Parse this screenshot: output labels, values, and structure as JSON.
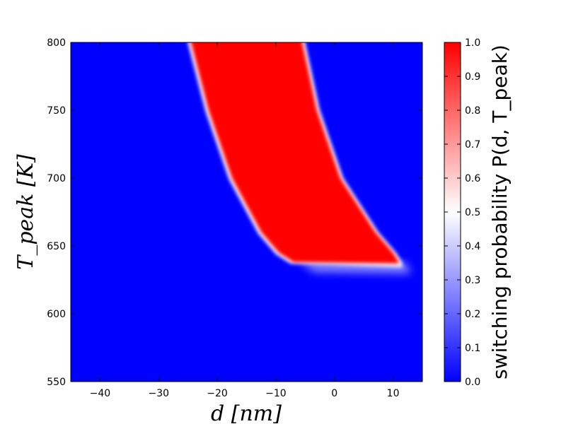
{
  "chart_data": {
    "type": "heatmap",
    "title": "",
    "xlabel": "d [nm]",
    "ylabel": "T_peak [K]",
    "xlim": [
      -45,
      15
    ],
    "ylim": [
      550,
      800
    ],
    "x_ticks": [
      -40,
      -30,
      -20,
      -10,
      0,
      10
    ],
    "x_tick_labels": [
      "−40",
      "−30",
      "−20",
      "−10",
      "0",
      "10"
    ],
    "y_ticks": [
      550,
      600,
      650,
      700,
      750,
      800
    ],
    "y_tick_labels": [
      "550",
      "600",
      "650",
      "700",
      "750",
      "800"
    ],
    "colorbar": {
      "label": "switching probability P(d, T_peak)",
      "range": [
        0.0,
        1.0
      ],
      "ticks": [
        0.0,
        0.1,
        0.2,
        0.3,
        0.4,
        0.5,
        0.6,
        0.7,
        0.8,
        0.9,
        1.0
      ],
      "tick_labels": [
        "0.0",
        "0.1",
        "0.2",
        "0.3",
        "0.4",
        "0.5",
        "0.6",
        "0.7",
        "0.8",
        "0.9",
        "1.0"
      ],
      "colormap": [
        "#0000ff",
        "#ffffff",
        "#ff0000"
      ]
    },
    "high_probability_region": {
      "value": 1.0,
      "background_value": 0.0,
      "T_threshold": 637,
      "left_boundary": [
        {
          "T": 800,
          "d": -24.5
        },
        {
          "T": 750,
          "d": -21.5
        },
        {
          "T": 700,
          "d": -17.5
        },
        {
          "T": 660,
          "d": -12.5
        },
        {
          "T": 645,
          "d": -9.5
        },
        {
          "T": 638,
          "d": -7.0
        }
      ],
      "right_boundary": [
        {
          "T": 800,
          "d": -5.5
        },
        {
          "T": 750,
          "d": -3.0
        },
        {
          "T": 700,
          "d": 1.0
        },
        {
          "T": 660,
          "d": 7.0
        },
        {
          "T": 645,
          "d": 10.0
        },
        {
          "T": 638,
          "d": 11.0
        }
      ]
    }
  }
}
